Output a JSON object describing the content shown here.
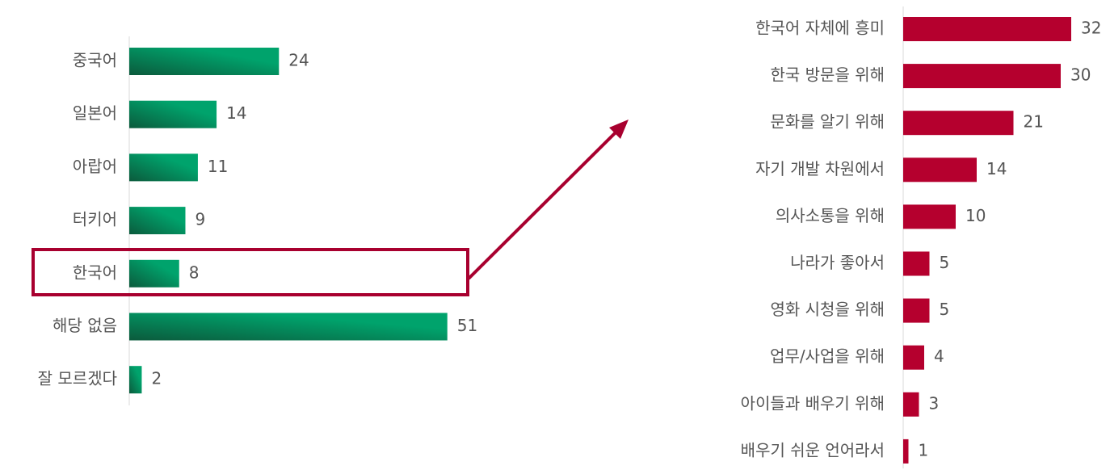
{
  "chart_data": [
    {
      "type": "bar",
      "categories": [
        "중국어",
        "일본어",
        "아랍어",
        "터키어",
        "한국어",
        "해당 없음",
        "잘 모르겠다"
      ],
      "values": [
        24,
        14,
        11,
        9,
        8,
        51,
        2
      ],
      "color": "#00a36c"
    },
    {
      "type": "bar",
      "categories": [
        "한국어 자체에 흥미",
        "한국 방문을 위해",
        "문화를 알기 위해",
        "자기 개발 차원에서",
        "의사소통을 위해",
        "나라가 좋아서",
        "영화 시청을 위해",
        "업무/사업을 위해",
        "아이들과 배우기 위해",
        "배우기 쉬운 언어라서"
      ],
      "values": [
        32,
        30,
        21,
        14,
        10,
        5,
        5,
        4,
        3,
        1
      ],
      "color": "#b5002e"
    }
  ]
}
